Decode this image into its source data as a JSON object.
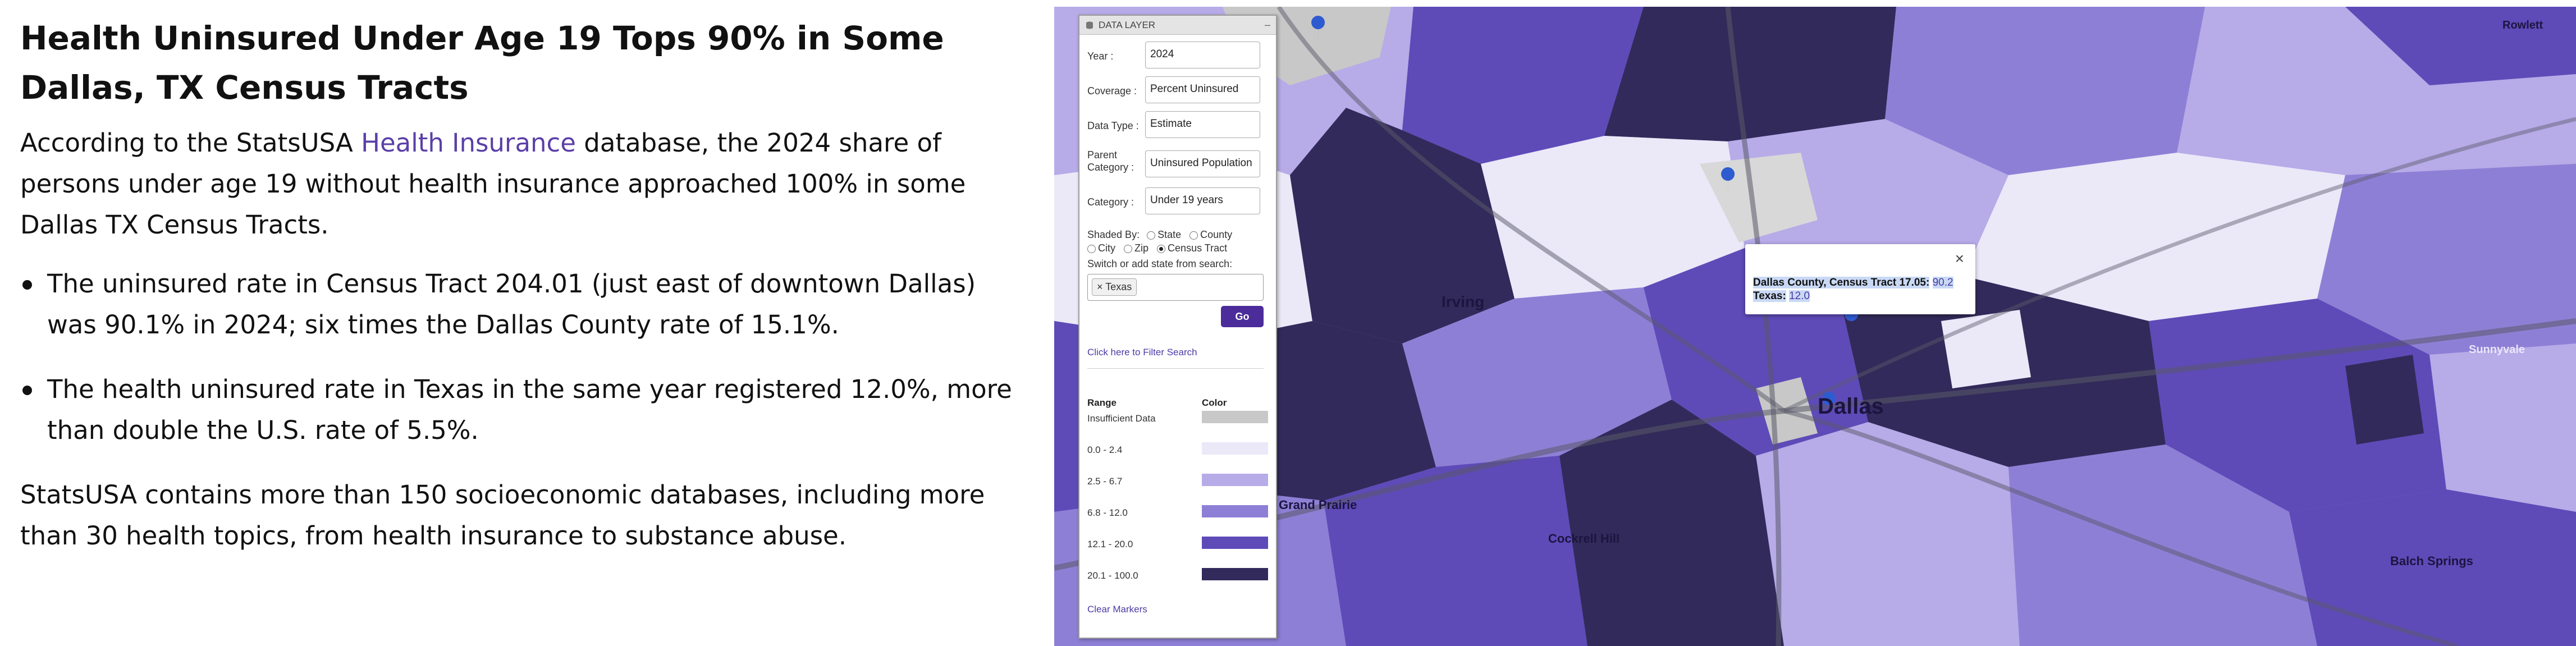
{
  "article": {
    "title": "Health Uninsured Under Age 19 Tops 90% in Some Dallas, TX Census Tracts",
    "intro_pre": "According to the StatsUSA ",
    "intro_link": "Health Insurance",
    "intro_post": " database, the 2024 share of persons under age 19 without health insurance approached 100% in some Dallas TX Census Tracts.",
    "bullets": [
      "The uninsured rate in Census Tract 204.01 (just east of downtown Dallas) was 90.1% in 2024; six times the Dallas County rate of 15.1%.",
      "The health uninsured rate in Texas in the same year registered 12.0%, more than double the U.S. rate of 5.5%."
    ],
    "outro": "StatsUSA contains more than 150 socioeconomic databases, including more than 30 health topics, from health insurance to substance abuse."
  },
  "panel": {
    "title": "DATA LAYER",
    "year_label": "Year :",
    "year_value": "2024",
    "coverage_label": "Coverage :",
    "coverage_value": "Percent Uninsured",
    "datatype_label": "Data Type :",
    "datatype_value": "Estimate",
    "parent_label_1": "Parent",
    "parent_label_2": "Category :",
    "parent_value": "Uninsured Population",
    "category_label": "Category :",
    "category_value": "Under 19 years",
    "shaded_by_label": "Shaded By:",
    "shaded_options": [
      "State",
      "County",
      "City",
      "Zip",
      "Census Tract"
    ],
    "shaded_selected": "Census Tract",
    "switch_label": "Switch or add state from search:",
    "state_tag": "× Texas",
    "go_label": "Go",
    "filter_link": "Click here to Filter Search",
    "legend_range_header": "Range",
    "legend_color_header": "Color",
    "legend": [
      {
        "range": "Insufficient Data",
        "color": "#c8c8c8"
      },
      {
        "range": "0.0 - 2.4",
        "color": "#ebe8f8"
      },
      {
        "range": "2.5 - 6.7",
        "color": "#b7abe8"
      },
      {
        "range": "6.8 - 12.0",
        "color": "#8e7fd6"
      },
      {
        "range": "12.1 - 20.0",
        "color": "#5e4bb8"
      },
      {
        "range": "20.1 - 100.0",
        "color": "#322a5a"
      }
    ],
    "clear_markers": "Clear Markers"
  },
  "popup": {
    "line1_label": "Dallas County, Census Tract 17.05:",
    "line1_value": "90.2",
    "line2_label": "Texas:",
    "line2_value": "12.0",
    "close": "×"
  },
  "map": {
    "city_labels": [
      "Dallas",
      "Irving"
    ],
    "neighborhood_labels": [
      "Grand Prairie",
      "Cockrell Hill",
      "Balch Springs",
      "Sunnyvale",
      "Rowlett"
    ]
  }
}
